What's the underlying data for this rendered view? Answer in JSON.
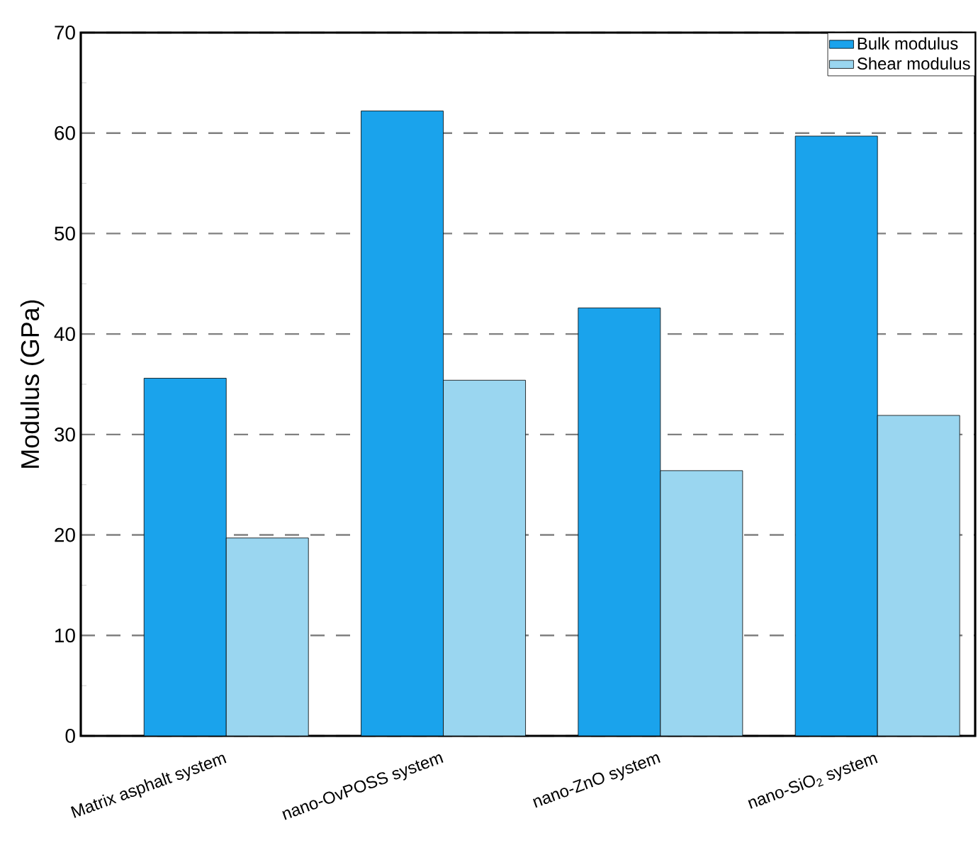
{
  "chart_data": {
    "type": "bar",
    "ylabel": "Modulus (GPa)",
    "categories": [
      "Matrix asphalt system",
      "nano-OvPOSS system",
      "nano-ZnO system",
      "nano-SiO$_{2}$ system"
    ],
    "series": [
      {
        "name": "Bulk modulus",
        "color": "#1aa3ec",
        "values": [
          35.6,
          62.2,
          42.6,
          59.7
        ]
      },
      {
        "name": "Shear modulus",
        "color": "#9ad6f0",
        "values": [
          19.7,
          35.4,
          26.4,
          31.9
        ]
      }
    ],
    "ylim": [
      0,
      70
    ],
    "yticks": [
      0,
      10,
      20,
      30,
      40,
      50,
      60,
      70
    ],
    "grid": "y",
    "legend": "top right"
  }
}
